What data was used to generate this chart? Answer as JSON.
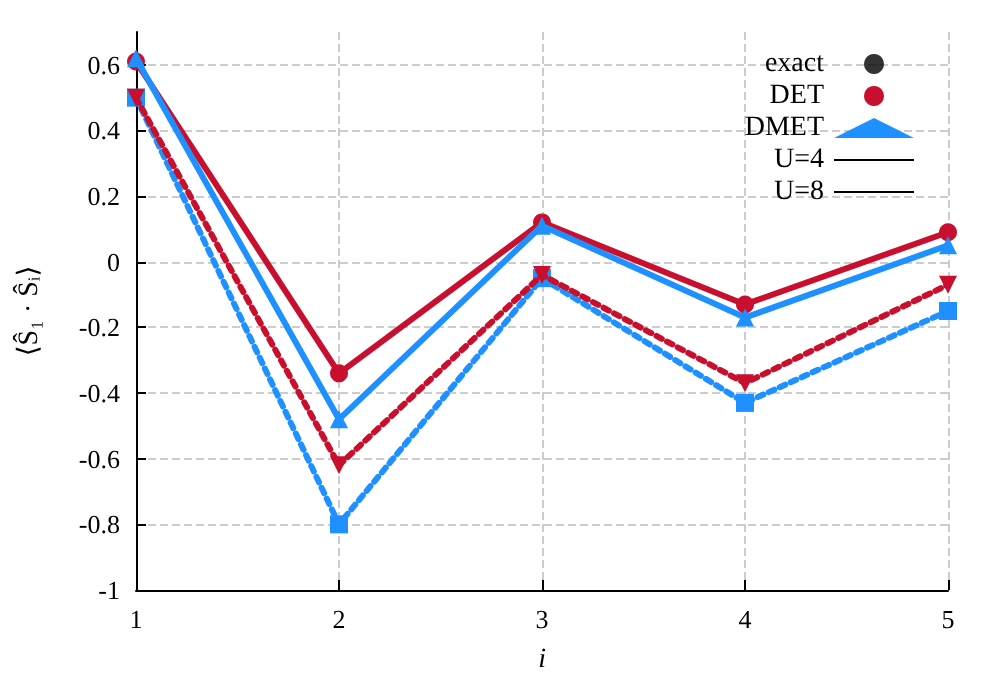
{
  "chart_data": {
    "type": "line",
    "xlabel": "i",
    "ylabel": "⟨Ŝ₁ · Ŝᵢ⟩",
    "x": [
      1,
      2,
      3,
      4,
      5
    ],
    "series": [
      {
        "name": "exact",
        "type": "scatter",
        "color": "#000000",
        "marker": "circle",
        "values": [
          null,
          null,
          null,
          null,
          null
        ]
      },
      {
        "name": "DET",
        "color": "#c8102e",
        "marker": "circle",
        "line_style": "solid",
        "values": [
          0.61,
          -0.34,
          0.12,
          -0.13,
          0.09
        ]
      },
      {
        "name": "DMET",
        "color": "#1e90ff",
        "marker": "triangle",
        "line_style": "solid",
        "values": [
          0.62,
          -0.48,
          0.11,
          -0.17,
          0.05
        ]
      },
      {
        "color": "#1e90ff",
        "marker": "square",
        "line_style": "dotted",
        "values": [
          0.5,
          -0.8,
          -0.05,
          -0.43,
          -0.15
        ]
      },
      {
        "color": "#c8102e",
        "marker": "triangle",
        "line_style": "dotted",
        "values": [
          0.5,
          -0.62,
          -0.04,
          -0.37,
          -0.07
        ]
      },
      {
        "name": "U=4",
        "color": "#000000",
        "marker": "none",
        "line_style": "solid",
        "values": [
          null,
          null,
          null,
          null,
          null
        ]
      },
      {
        "name": "U=8",
        "color": "#000000",
        "marker": "none",
        "line_style": "dotted",
        "values": [
          null,
          null,
          null,
          null,
          null
        ]
      }
    ],
    "xlim": [
      1,
      5
    ],
    "xticks": [
      1,
      2,
      3,
      4,
      5
    ],
    "ylim": [
      -1,
      0.7
    ],
    "yticks": [
      -1,
      -0.8,
      -0.6,
      -0.4,
      -0.2,
      0,
      0.2,
      0.4,
      0.6
    ],
    "grid": true,
    "legend": "top right"
  }
}
